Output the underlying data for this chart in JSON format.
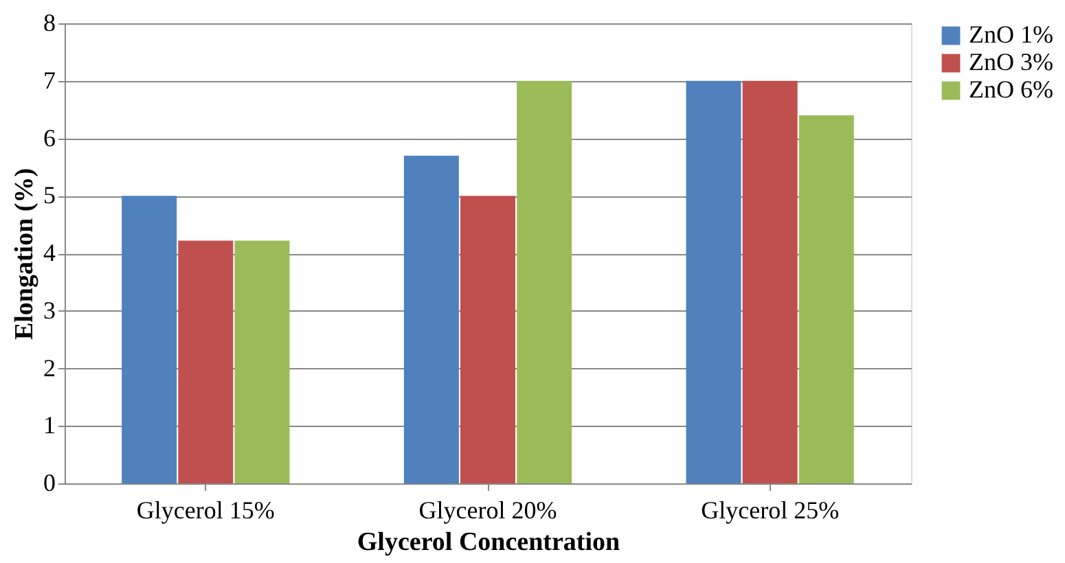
{
  "chart_data": {
    "type": "bar",
    "xlabel": "Glycerol Concentration",
    "ylabel": "Elongation (%)",
    "categories": [
      "Glycerol 15%",
      "Glycerol 20%",
      "Glycerol 25%"
    ],
    "series": [
      {
        "name": "ZnO 1%",
        "color": "#4f81bd",
        "values": [
          5.0,
          5.7,
          7.0
        ]
      },
      {
        "name": "ZnO 3%",
        "color": "#c0504d",
        "values": [
          4.22,
          5.0,
          7.0
        ]
      },
      {
        "name": "ZnO 6%",
        "color": "#9bbb59",
        "values": [
          4.22,
          7.0,
          6.4
        ]
      }
    ],
    "ylim": [
      0,
      8
    ],
    "yticks": [
      0,
      1,
      2,
      3,
      4,
      5,
      6,
      7,
      8
    ],
    "grid": "y",
    "legend": "right"
  }
}
